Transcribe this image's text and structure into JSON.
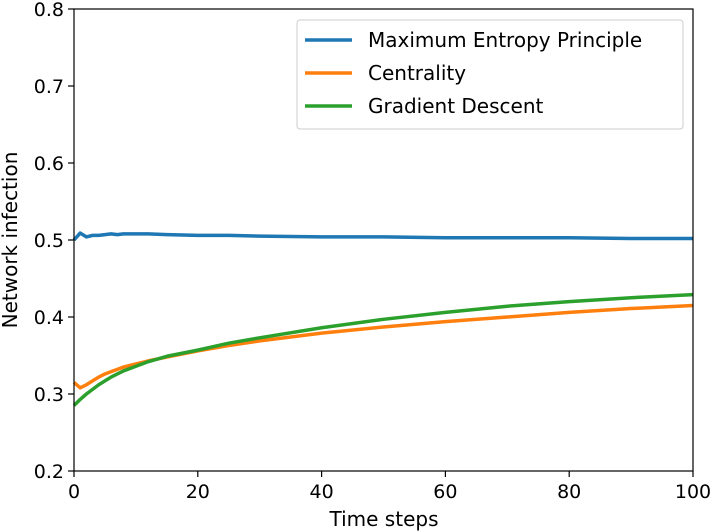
{
  "chart_data": {
    "type": "line",
    "xlabel": "Time steps",
    "ylabel": "Network infection",
    "xlim": [
      0,
      100
    ],
    "ylim": [
      0.2,
      0.8
    ],
    "xticks": [
      "0",
      "20",
      "40",
      "60",
      "80",
      "100"
    ],
    "yticks": [
      "0.2",
      "0.3",
      "0.4",
      "0.5",
      "0.6",
      "0.7",
      "0.8"
    ],
    "grid": false,
    "legend_position": "top-right",
    "x": [
      0,
      1,
      2,
      3,
      4,
      5,
      6,
      7,
      8,
      9,
      10,
      12,
      15,
      20,
      25,
      30,
      40,
      50,
      60,
      70,
      80,
      90,
      100
    ],
    "series": [
      {
        "name": "Maximum Entropy Principle",
        "color": "#1f77b4",
        "values": [
          0.5,
          0.509,
          0.504,
          0.506,
          0.506,
          0.507,
          0.508,
          0.507,
          0.508,
          0.508,
          0.508,
          0.508,
          0.507,
          0.506,
          0.506,
          0.505,
          0.504,
          0.504,
          0.503,
          0.503,
          0.503,
          0.502,
          0.502
        ]
      },
      {
        "name": "Centrality",
        "color": "#ff7f0e",
        "values": [
          0.315,
          0.308,
          0.312,
          0.317,
          0.322,
          0.326,
          0.329,
          0.332,
          0.335,
          0.337,
          0.339,
          0.343,
          0.348,
          0.356,
          0.363,
          0.369,
          0.379,
          0.387,
          0.394,
          0.4,
          0.406,
          0.411,
          0.415
        ]
      },
      {
        "name": "Gradient Descent",
        "color": "#2ca02c",
        "values": [
          0.285,
          0.293,
          0.3,
          0.306,
          0.312,
          0.317,
          0.322,
          0.326,
          0.33,
          0.333,
          0.336,
          0.342,
          0.349,
          0.357,
          0.366,
          0.373,
          0.386,
          0.397,
          0.406,
          0.414,
          0.42,
          0.425,
          0.429
        ]
      }
    ]
  }
}
